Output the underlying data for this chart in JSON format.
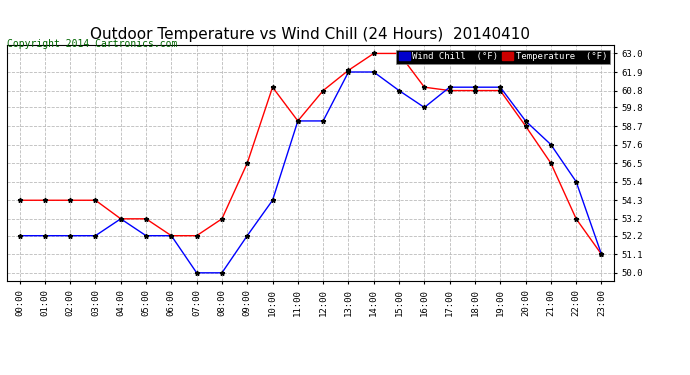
{
  "title": "Outdoor Temperature vs Wind Chill (24 Hours)  20140410",
  "copyright": "Copyright 2014 Cartronics.com",
  "background_color": "#ffffff",
  "plot_bg_color": "#ffffff",
  "grid_color": "#bbbbbb",
  "hours": [
    0,
    1,
    2,
    3,
    4,
    5,
    6,
    7,
    8,
    9,
    10,
    11,
    12,
    13,
    14,
    15,
    16,
    17,
    18,
    19,
    20,
    21,
    22,
    23
  ],
  "temperature": [
    54.3,
    54.3,
    54.3,
    54.3,
    53.2,
    53.2,
    52.2,
    52.2,
    53.2,
    56.5,
    61.0,
    59.0,
    60.8,
    62.0,
    63.0,
    63.0,
    61.0,
    60.8,
    60.8,
    60.8,
    58.7,
    56.5,
    53.2,
    51.1
  ],
  "wind_chill": [
    52.2,
    52.2,
    52.2,
    52.2,
    53.2,
    52.2,
    52.2,
    50.0,
    50.0,
    52.2,
    54.3,
    59.0,
    59.0,
    61.9,
    61.9,
    60.8,
    59.8,
    61.0,
    61.0,
    61.0,
    59.0,
    57.6,
    55.4,
    51.1
  ],
  "temp_color": "#ff0000",
  "wind_chill_color": "#0000ff",
  "marker_color": "#000000",
  "marker_size": 3.5,
  "ylim_min": 49.5,
  "ylim_max": 63.5,
  "yticks": [
    50.0,
    51.1,
    52.2,
    53.2,
    54.3,
    55.4,
    56.5,
    57.6,
    58.7,
    59.8,
    60.8,
    61.9,
    63.0
  ],
  "legend_wind_chill_bg": "#0000cc",
  "legend_temp_bg": "#cc0000",
  "legend_text_color": "#ffffff",
  "title_fontsize": 11,
  "tick_fontsize": 6.5,
  "copyright_fontsize": 7,
  "linewidth": 1.0
}
